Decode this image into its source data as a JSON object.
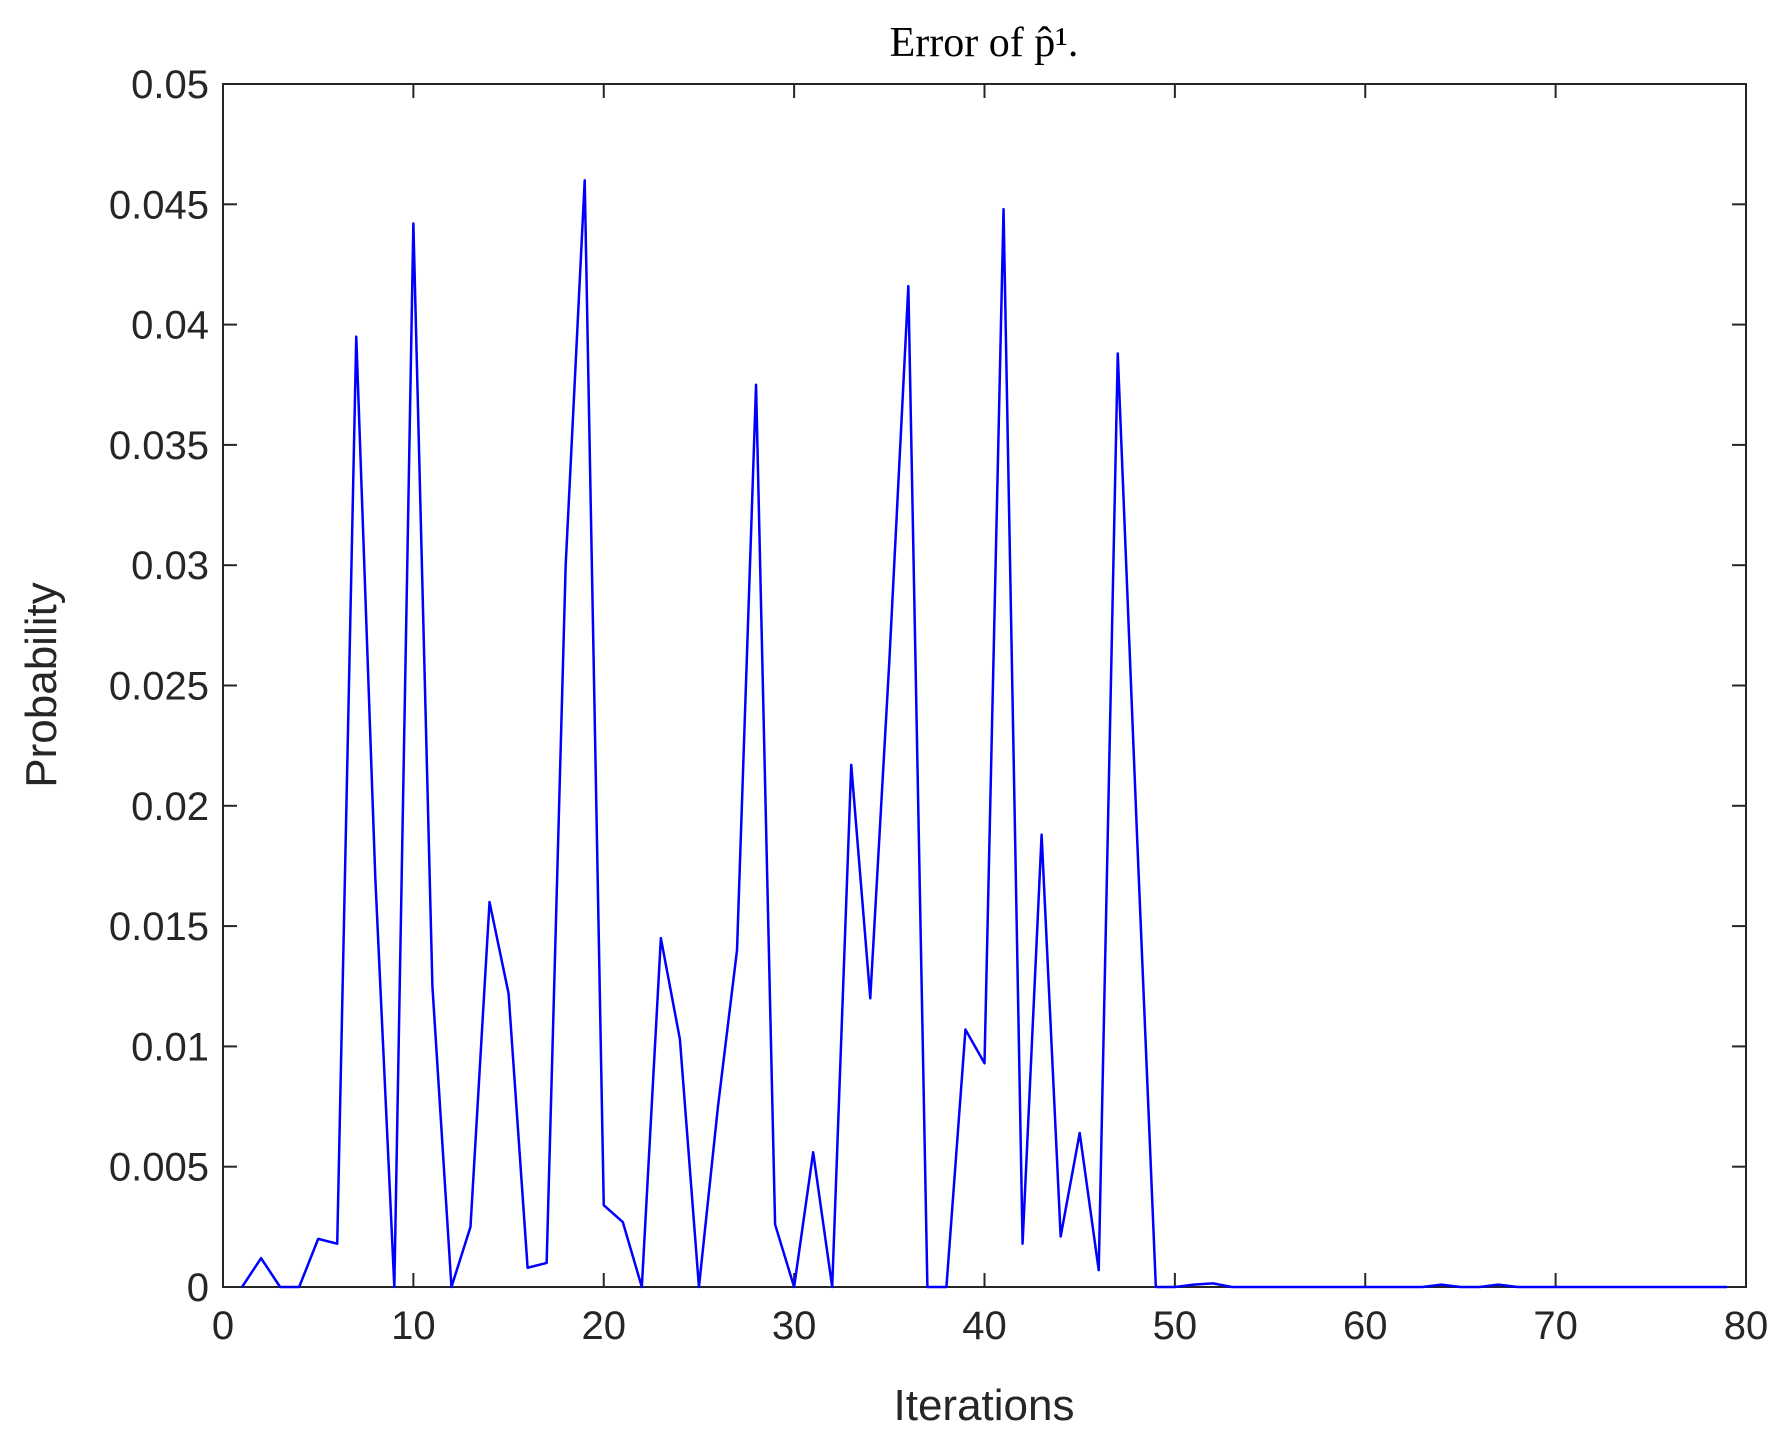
{
  "chart_data": {
    "type": "line",
    "title": "Error of p̂¹.",
    "xlabel": "Iterations",
    "ylabel": "Probability",
    "x": [
      1,
      2,
      3,
      4,
      5,
      6,
      7,
      8,
      9,
      10,
      11,
      12,
      13,
      14,
      15,
      16,
      17,
      18,
      19,
      20,
      21,
      22,
      23,
      24,
      25,
      26,
      27,
      28,
      29,
      30,
      31,
      32,
      33,
      34,
      35,
      36,
      37,
      38,
      39,
      40,
      41,
      42,
      43,
      44,
      45,
      46,
      47,
      48,
      49,
      50,
      51,
      52,
      53,
      54,
      55,
      56,
      57,
      58,
      59,
      60,
      61,
      62,
      63,
      64,
      65,
      66,
      67,
      68,
      69,
      70,
      71,
      72,
      73,
      74,
      75,
      76,
      77,
      78,
      79
    ],
    "series": [
      {
        "color": "#0000ff",
        "values": [
          0,
          0.0012,
          0,
          0,
          0.002,
          0.0018,
          0.0395,
          0.017,
          0,
          0.0442,
          0.0125,
          0,
          0.0025,
          0.016,
          0.0122,
          0.0008,
          0.001,
          0.03,
          0.046,
          0.0034,
          0.0027,
          0,
          0.0145,
          0.0103,
          0,
          0.0075,
          0.014,
          0.0375,
          0.0026,
          0,
          0.0056,
          0,
          0.0217,
          0.012,
          0.026,
          0.0416,
          0,
          0,
          0.0107,
          0.0093,
          0.0448,
          0.0018,
          0.0188,
          0.0021,
          0.0064,
          0.0007,
          0.0388,
          0.019,
          0,
          0,
          0.0001,
          0.00015,
          0,
          0,
          0,
          0,
          0,
          0,
          0,
          0,
          0,
          0,
          0,
          0.0001,
          0,
          0,
          0.0001,
          0,
          0,
          0,
          0,
          0,
          0,
          0,
          0,
          0,
          0,
          0,
          0
        ]
      }
    ],
    "xlim": [
      0,
      80
    ],
    "xticks": [
      0,
      10,
      20,
      30,
      40,
      50,
      60,
      70,
      80
    ],
    "ylim": [
      0,
      0.05
    ],
    "yticks": [
      0,
      0.005,
      0.01,
      0.015,
      0.02,
      0.025,
      0.03,
      0.035,
      0.04,
      0.045,
      0.05
    ]
  }
}
